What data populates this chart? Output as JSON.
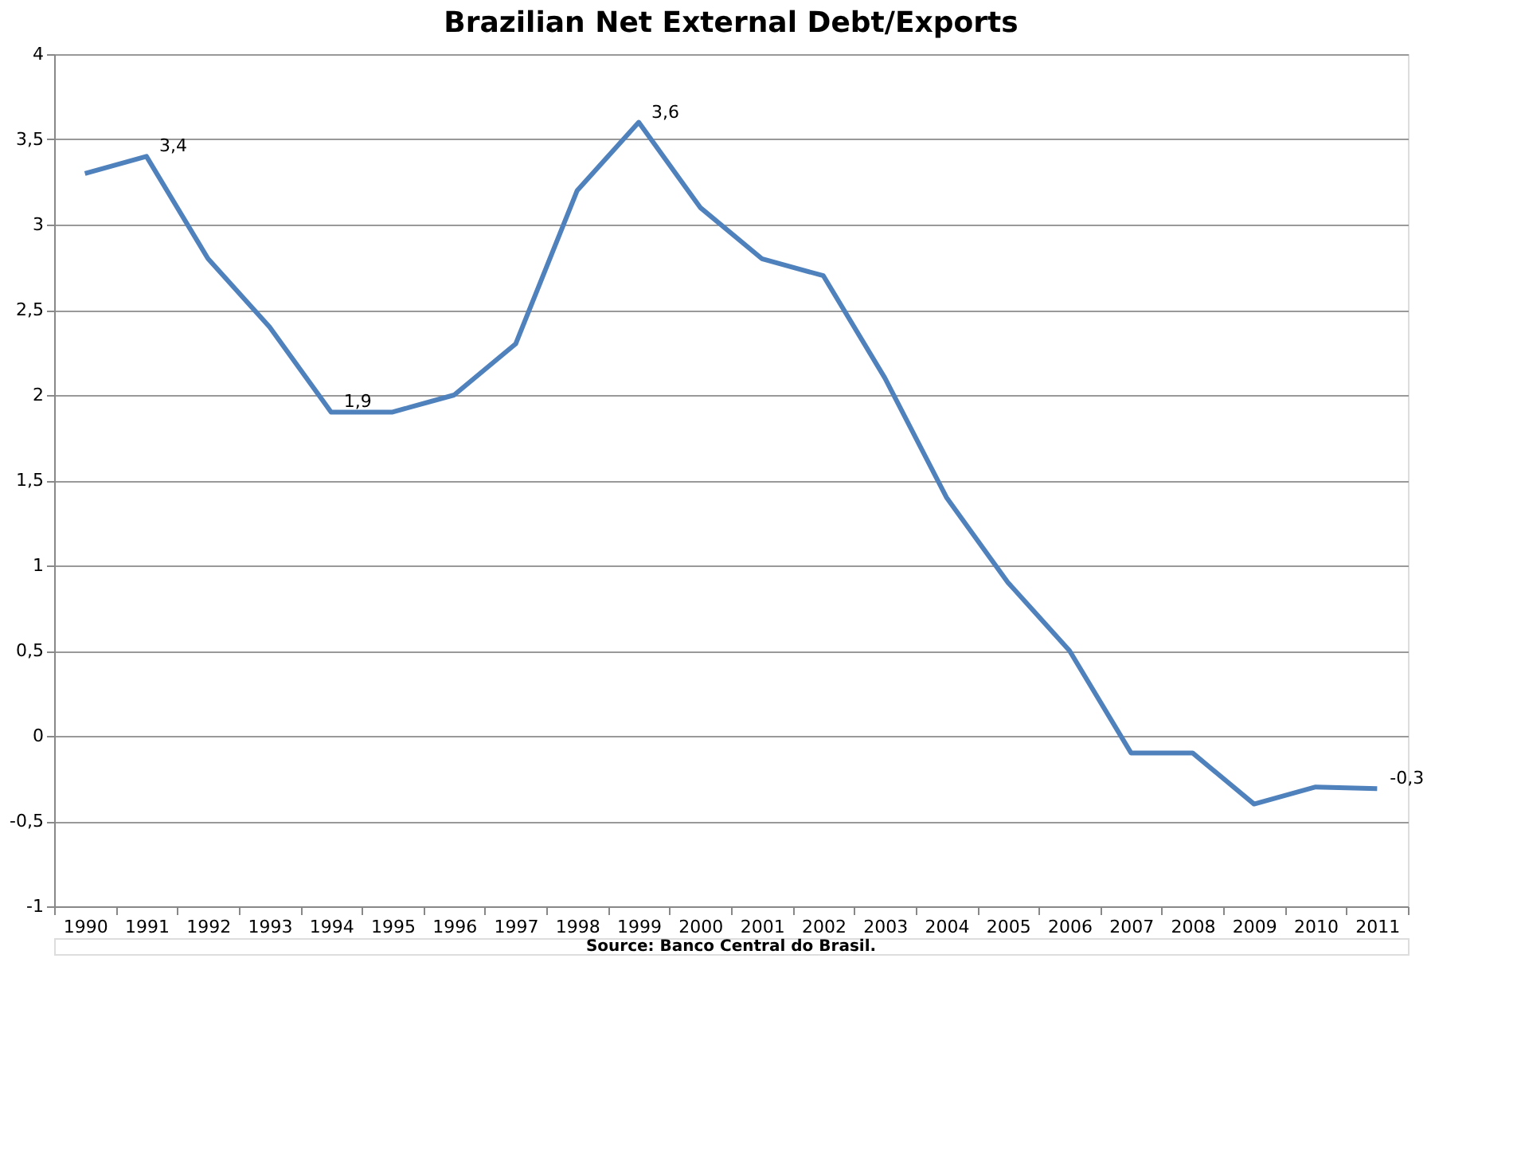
{
  "chart_data": {
    "type": "line",
    "title": "Brazilian Net External Debt/Exports",
    "categories": [
      "1990",
      "1991",
      "1992",
      "1993",
      "1994",
      "1995",
      "1996",
      "1997",
      "1998",
      "1999",
      "2000",
      "2001",
      "2002",
      "2003",
      "2004",
      "2005",
      "2006",
      "2007",
      "2008",
      "2009",
      "2010",
      "2011"
    ],
    "series": [
      {
        "color": "#4f81bd",
        "values": [
          3.3,
          3.4,
          2.8,
          2.4,
          1.9,
          1.9,
          2.0,
          2.3,
          3.2,
          3.6,
          3.1,
          2.8,
          2.7,
          2.1,
          1.4,
          0.9,
          0.5,
          -0.1,
          -0.1,
          -0.4,
          -0.3,
          -0.31
        ],
        "value_labels": [
          null,
          "3,4",
          null,
          null,
          "1,9",
          null,
          null,
          null,
          null,
          "3,6",
          null,
          null,
          null,
          null,
          null,
          null,
          null,
          null,
          null,
          null,
          null,
          "-0,3"
        ]
      }
    ],
    "ylim": [
      -1,
      4
    ],
    "yticks": [
      {
        "value": -1,
        "label": "-1"
      },
      {
        "value": -0.5,
        "label": "-0,5"
      },
      {
        "value": 0,
        "label": "0"
      },
      {
        "value": 0.5,
        "label": "0,5"
      },
      {
        "value": 1,
        "label": "1"
      },
      {
        "value": 1.5,
        "label": "1,5"
      },
      {
        "value": 2,
        "label": "2"
      },
      {
        "value": 2.5,
        "label": "2,5"
      },
      {
        "value": 3,
        "label": "3"
      },
      {
        "value": 3.5,
        "label": "3,5"
      },
      {
        "value": 4,
        "label": "4"
      }
    ],
    "grid": "y",
    "marker": "none",
    "line_style": "solid",
    "annotations": [
      "Source: Banco Central do Brasil."
    ]
  }
}
